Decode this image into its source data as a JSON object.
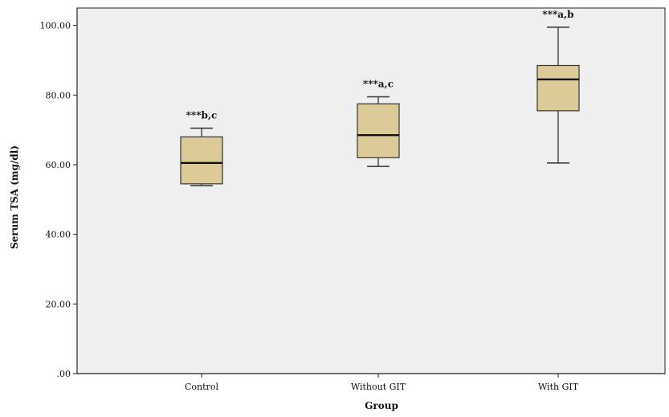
{
  "chart_data": {
    "type": "box",
    "xlabel": "Group",
    "ylabel": "Serum TSA (mg/dl)",
    "ylim": [
      0,
      105
    ],
    "y_ticks": [
      0,
      20,
      40,
      60,
      80,
      100
    ],
    "y_tick_labels": [
      ".00",
      "20.00",
      "40.00",
      "60.00",
      "80.00",
      "100.00"
    ],
    "categories": [
      "Control",
      "Without GIT",
      "With GIT"
    ],
    "boxes": [
      {
        "category": "Control",
        "min": 54,
        "q1": 54.5,
        "median": 60.5,
        "q3": 68,
        "max": 70.5,
        "annotation": "***b,c"
      },
      {
        "category": "Without GIT",
        "min": 59.5,
        "q1": 62,
        "median": 68.5,
        "q3": 77.5,
        "max": 79.5,
        "annotation": "***a,c"
      },
      {
        "category": "With GIT",
        "min": 60.5,
        "q1": 75.5,
        "median": 84.5,
        "q3": 88.5,
        "max": 99.5,
        "annotation": "***a,b"
      }
    ],
    "grid": false,
    "legend": false
  },
  "colors": {
    "plot_background": "#efefef",
    "box_fill": "#dccb98",
    "box_stroke": "#333333",
    "median_stroke": "#111111",
    "axis": "#222222"
  }
}
